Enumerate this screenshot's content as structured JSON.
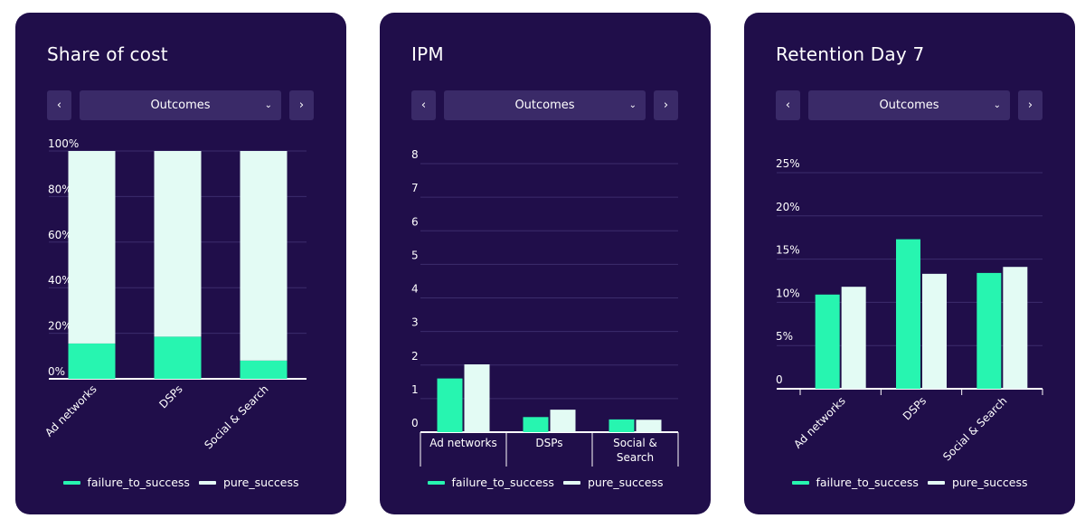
{
  "colors": {
    "card_bg": "#200e4a",
    "control_bg": "#3a2a68",
    "failure_to_success": "#27f5b0",
    "pure_success": "#e3fbf4",
    "grid": "#3c2c6c",
    "axis": "#ffffff"
  },
  "icons": {
    "prev": "chevron-left-icon",
    "next": "chevron-right-icon",
    "dropdown": "chevron-down-icon"
  },
  "cards": [
    {
      "title": "Share of cost",
      "dropdown_value": "Outcomes",
      "prev_glyph": "‹",
      "next_glyph": "›",
      "dropdown_glyph": "⌄"
    },
    {
      "title": "IPM",
      "dropdown_value": "Outcomes",
      "prev_glyph": "‹",
      "next_glyph": "›",
      "dropdown_glyph": "⌄"
    },
    {
      "title": "Retention Day 7",
      "dropdown_value": "Outcomes",
      "prev_glyph": "‹",
      "next_glyph": "›",
      "dropdown_glyph": "⌄"
    }
  ],
  "chart_data": [
    {
      "type": "bar",
      "stacked": true,
      "title": "Share of cost",
      "categories": [
        "Ad networks",
        "DSPs",
        "Social & Search"
      ],
      "series": [
        {
          "name": "failure_to_success",
          "values": [
            15.5,
            18.5,
            8.0
          ]
        },
        {
          "name": "pure_success",
          "values": [
            84.5,
            81.5,
            92.0
          ]
        }
      ],
      "yticks": [
        0,
        20,
        40,
        60,
        80,
        100
      ],
      "ytick_labels": [
        "0%",
        "20%",
        "40%",
        "60%",
        "80%",
        "100%"
      ],
      "ylim": [
        0,
        100
      ],
      "grid": true,
      "rotated_xlabels": true,
      "legend_position": "bottom"
    },
    {
      "type": "bar",
      "stacked": false,
      "title": "IPM",
      "categories": [
        "Ad networks",
        "DSPs",
        "Social & Search"
      ],
      "category_label_lines": [
        [
          "Ad networks"
        ],
        [
          "DSPs"
        ],
        [
          "Social &",
          "Search"
        ]
      ],
      "series": [
        {
          "name": "failure_to_success",
          "values": [
            1.6,
            0.45,
            0.38
          ]
        },
        {
          "name": "pure_success",
          "values": [
            2.02,
            0.67,
            0.37
          ]
        }
      ],
      "yticks": [
        0,
        1,
        2,
        3,
        4,
        5,
        6,
        7,
        8
      ],
      "ytick_labels": [
        "0",
        "1",
        "2",
        "3",
        "4",
        "5",
        "6",
        "7",
        "8"
      ],
      "ylim": [
        0,
        8
      ],
      "grid": true,
      "rotated_xlabels": false,
      "legend_position": "bottom"
    },
    {
      "type": "bar",
      "stacked": false,
      "title": "Retention Day 7",
      "categories": [
        "Ad networks",
        "DSPs",
        "Social & Search"
      ],
      "series": [
        {
          "name": "failure_to_success",
          "values": [
            10.9,
            17.3,
            13.4
          ]
        },
        {
          "name": "pure_success",
          "values": [
            11.8,
            13.3,
            14.1
          ]
        }
      ],
      "yticks": [
        0,
        5,
        10,
        15,
        20,
        25
      ],
      "ytick_labels": [
        "0",
        "5%",
        "10%",
        "15%",
        "20%",
        "25%"
      ],
      "ylim": [
        0,
        25
      ],
      "grid": true,
      "rotated_xlabels": true,
      "legend_position": "bottom"
    }
  ]
}
